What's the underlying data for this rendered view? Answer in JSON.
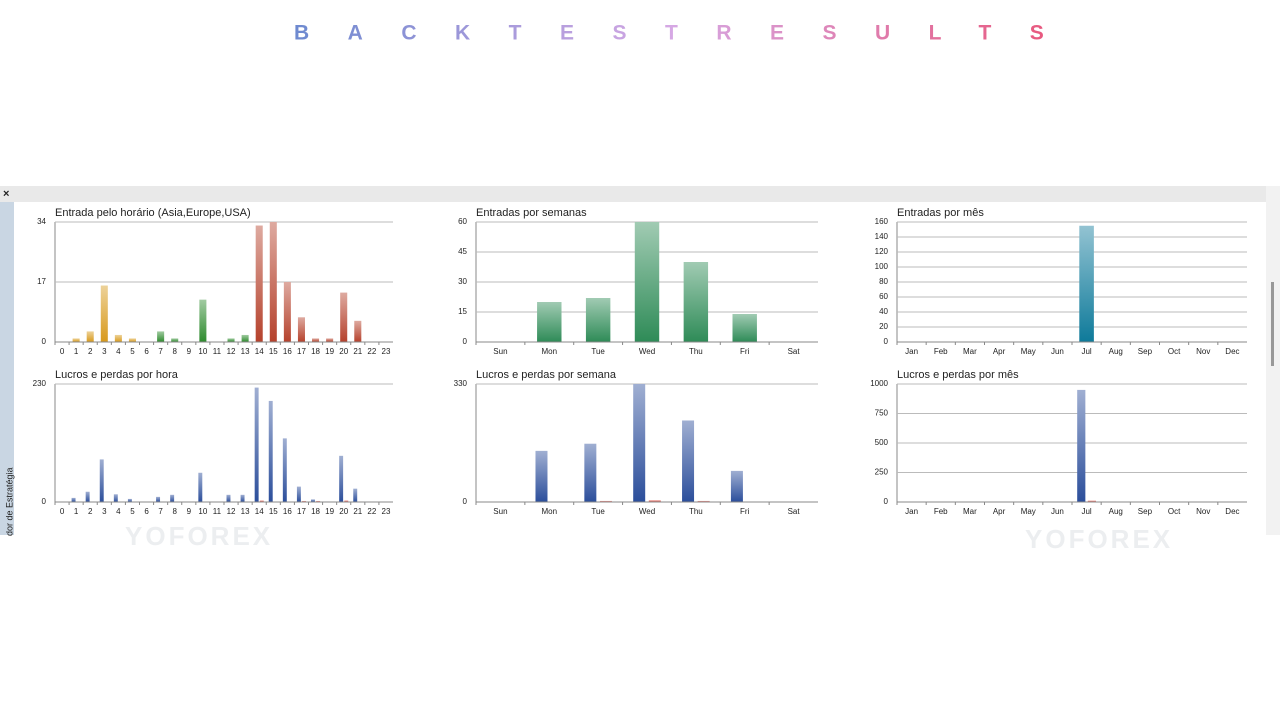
{
  "header": {
    "title": "BACKTESTRESULTS"
  },
  "side_label": "dor de Estratégia",
  "watermark": "YOFOREX",
  "chart_data": [
    {
      "type": "bar",
      "title": "Entrada pelo horário (Asia,Europe,USA)",
      "categories": [
        "0",
        "1",
        "2",
        "3",
        "4",
        "5",
        "6",
        "7",
        "8",
        "9",
        "10",
        "11",
        "12",
        "13",
        "14",
        "15",
        "16",
        "17",
        "18",
        "19",
        "20",
        "21",
        "22",
        "23"
      ],
      "ylim": [
        0,
        34
      ],
      "yticks": [
        0,
        17,
        34
      ],
      "grid": true,
      "series": [
        {
          "colors": [
            "#d89a1c",
            "#d89a1c",
            "#d89a1c",
            "#d89a1c",
            "#d89a1c",
            "#d89a1c",
            "#2e8b2e",
            "#2e8b2e",
            "#2e8b2e",
            "#2e8b2e",
            "#2e8b2e",
            "#2e8b2e",
            "#2e8b2e",
            "#2e8b2e",
            "#b5412c",
            "#b5412c",
            "#b5412c",
            "#b5412c",
            "#b5412c",
            "#b5412c",
            "#b5412c",
            "#b5412c",
            "#b5412c",
            "#b5412c"
          ],
          "values": [
            0,
            1,
            3,
            16,
            2,
            1,
            0,
            3,
            1,
            0,
            12,
            0,
            1,
            2,
            33,
            34,
            17,
            7,
            1,
            1,
            14,
            6,
            0,
            0
          ]
        }
      ]
    },
    {
      "type": "bar",
      "title": "Entradas por semanas",
      "categories": [
        "Sun",
        "Mon",
        "Tue",
        "Wed",
        "Thu",
        "Fri",
        "Sat"
      ],
      "ylim": [
        0,
        60
      ],
      "yticks": [
        0,
        15,
        30,
        45,
        60
      ],
      "grid": true,
      "series": [
        {
          "color": "#2e8b57",
          "values": [
            0,
            20,
            22,
            60,
            40,
            14,
            0
          ]
        }
      ]
    },
    {
      "type": "bar",
      "title": "Entradas por mês",
      "categories": [
        "Jan",
        "Feb",
        "Mar",
        "Apr",
        "May",
        "Jun",
        "Jul",
        "Aug",
        "Sep",
        "Oct",
        "Nov",
        "Dec"
      ],
      "ylim": [
        0,
        160
      ],
      "yticks": [
        0,
        20,
        40,
        60,
        80,
        100,
        120,
        140,
        160
      ],
      "grid": true,
      "series": [
        {
          "color": "#0e7a9a",
          "values": [
            0,
            0,
            0,
            0,
            0,
            0,
            155,
            0,
            0,
            0,
            0,
            0
          ]
        }
      ]
    },
    {
      "type": "bar",
      "title": "Lucros e perdas por hora",
      "categories": [
        "0",
        "1",
        "2",
        "3",
        "4",
        "5",
        "6",
        "7",
        "8",
        "9",
        "10",
        "11",
        "12",
        "13",
        "14",
        "15",
        "16",
        "17",
        "18",
        "19",
        "20",
        "21",
        "22",
        "23"
      ],
      "ylim": [
        0,
        230
      ],
      "yticks": [
        0,
        230
      ],
      "grid": true,
      "series": [
        {
          "color": "#2b4e9b",
          "values": [
            0,
            8,
            20,
            83,
            15,
            6,
            0,
            10,
            14,
            0,
            57,
            0,
            14,
            14,
            223,
            197,
            124,
            30,
            5,
            1,
            90,
            26,
            0,
            0
          ]
        },
        {
          "color": "#d9453a",
          "values": [
            0,
            0,
            0,
            0,
            0,
            0,
            0,
            0,
            0,
            0,
            0,
            0,
            0,
            0,
            3,
            0,
            0,
            2,
            2,
            0,
            3,
            1,
            0,
            0
          ]
        }
      ]
    },
    {
      "type": "bar",
      "title": "Lucros e perdas por semana",
      "categories": [
        "Sun",
        "Mon",
        "Tue",
        "Wed",
        "Thu",
        "Fri",
        "Sat"
      ],
      "ylim": [
        0,
        330
      ],
      "yticks": [
        0,
        330
      ],
      "grid": true,
      "series": [
        {
          "color": "#2b4e9b",
          "values": [
            0,
            143,
            163,
            330,
            228,
            87,
            0
          ]
        },
        {
          "color": "#d9453a",
          "values": [
            0,
            0,
            3,
            5,
            3,
            0,
            0
          ]
        }
      ]
    },
    {
      "type": "bar",
      "title": "Lucros e perdas por mês",
      "categories": [
        "Jan",
        "Feb",
        "Mar",
        "Apr",
        "May",
        "Jun",
        "Jul",
        "Aug",
        "Sep",
        "Oct",
        "Nov",
        "Dec"
      ],
      "ylim": [
        0,
        1000
      ],
      "yticks": [
        0,
        250,
        500,
        750,
        1000
      ],
      "grid": true,
      "series": [
        {
          "color": "#2b4e9b",
          "values": [
            0,
            0,
            0,
            0,
            0,
            0,
            950,
            0,
            0,
            0,
            0,
            0
          ]
        },
        {
          "color": "#d9453a",
          "values": [
            0,
            0,
            0,
            0,
            0,
            0,
            12,
            0,
            0,
            0,
            0,
            0
          ]
        }
      ]
    }
  ]
}
